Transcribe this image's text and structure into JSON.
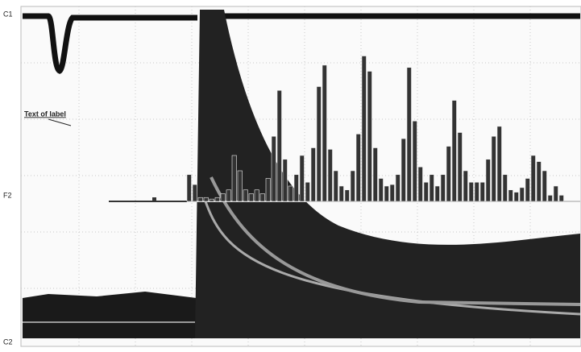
{
  "chart_data": {
    "type": "bar",
    "annotation": "Text of label",
    "channel_labels": [
      "C1",
      "F2",
      "C2"
    ],
    "values": [
      35,
      22,
      5,
      5,
      3,
      5,
      10,
      15,
      60,
      40,
      15,
      10,
      15,
      10,
      30,
      85,
      145,
      55,
      20,
      35,
      60,
      25,
      70,
      150,
      178,
      68,
      40,
      20,
      15,
      40,
      88,
      190,
      170,
      70,
      30,
      20,
      22,
      35,
      82,
      175,
      105,
      45,
      25,
      35,
      20,
      35,
      72,
      132,
      90,
      40,
      25,
      25,
      25,
      55,
      85,
      98,
      35,
      15,
      12,
      18,
      30,
      60,
      52,
      40,
      8,
      20,
      8
    ],
    "ylim": [
      0,
      200
    ],
    "color": "#333333"
  }
}
